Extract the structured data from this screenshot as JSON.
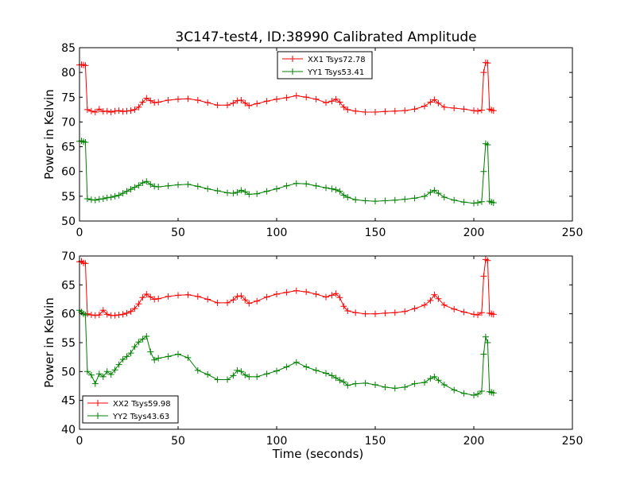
{
  "title": "3C147-test4, ID:38990 Calibrated Amplitude",
  "colors": {
    "red": "#ff0000",
    "green": "#008000"
  },
  "chart_data": [
    {
      "type": "line",
      "xlabel": "",
      "ylabel": "Power in Kelvin",
      "xlim": [
        0,
        250
      ],
      "ylim": [
        50,
        85
      ],
      "xticks": [
        "0",
        "50",
        "100",
        "150",
        "200",
        "250"
      ],
      "yticks": [
        "50",
        "55",
        "60",
        "65",
        "70",
        "75",
        "80",
        "85"
      ],
      "legend_position": "top-center",
      "grid": false,
      "series": [
        {
          "name": "XX1 Tsys72.78",
          "color": "#ff0000",
          "marker": "plus",
          "x": [
            0,
            1,
            2,
            3,
            4,
            6,
            8,
            10,
            12,
            14,
            16,
            18,
            20,
            22,
            24,
            26,
            28,
            30,
            32,
            34,
            36,
            38,
            40,
            45,
            50,
            55,
            60,
            65,
            70,
            75,
            78,
            80,
            82,
            84,
            86,
            90,
            95,
            100,
            105,
            110,
            115,
            120,
            125,
            128,
            130,
            132,
            134,
            136,
            140,
            145,
            150,
            155,
            160,
            165,
            170,
            175,
            178,
            180,
            182,
            185,
            190,
            195,
            200,
            202,
            204,
            205,
            206,
            207,
            208,
            209,
            210
          ],
          "y": [
            81.5,
            81.6,
            81.5,
            81.4,
            72.5,
            72.2,
            72.0,
            72.6,
            72.1,
            72.2,
            72.0,
            72.2,
            72.3,
            72.1,
            72.2,
            72.3,
            72.5,
            73.0,
            74.0,
            74.8,
            74.3,
            73.9,
            74.0,
            74.4,
            74.6,
            74.7,
            74.4,
            73.9,
            73.4,
            73.4,
            73.8,
            74.3,
            74.4,
            73.8,
            73.3,
            73.7,
            74.2,
            74.6,
            74.9,
            75.3,
            75.0,
            74.6,
            73.9,
            74.2,
            74.6,
            74.0,
            73.0,
            72.5,
            72.2,
            72.0,
            72.0,
            72.1,
            72.2,
            72.3,
            72.6,
            73.2,
            74.0,
            74.5,
            73.8,
            73.0,
            72.8,
            72.6,
            72.3,
            72.2,
            72.4,
            80.0,
            82.0,
            81.9,
            72.6,
            72.4,
            72.3
          ]
        },
        {
          "name": "YY1 Tsys53.41",
          "color": "#008000",
          "marker": "plus",
          "x": [
            0,
            1,
            2,
            3,
            4,
            6,
            8,
            10,
            12,
            14,
            16,
            18,
            20,
            22,
            24,
            26,
            28,
            30,
            32,
            34,
            36,
            38,
            40,
            45,
            50,
            55,
            60,
            65,
            70,
            75,
            78,
            80,
            82,
            84,
            86,
            90,
            95,
            100,
            105,
            110,
            115,
            120,
            125,
            128,
            130,
            132,
            134,
            136,
            140,
            145,
            150,
            155,
            160,
            165,
            170,
            175,
            178,
            180,
            182,
            185,
            190,
            195,
            200,
            202,
            204,
            205,
            206,
            207,
            208,
            209,
            210
          ],
          "y": [
            66.1,
            66.2,
            66.0,
            65.9,
            54.5,
            54.3,
            54.2,
            54.4,
            54.5,
            54.7,
            54.8,
            55.0,
            55.2,
            55.6,
            56.0,
            56.4,
            56.8,
            57.2,
            57.7,
            58.0,
            57.4,
            57.0,
            56.9,
            57.1,
            57.3,
            57.4,
            57.0,
            56.5,
            56.1,
            55.7,
            55.6,
            55.8,
            56.2,
            55.9,
            55.4,
            55.5,
            56.0,
            56.5,
            57.1,
            57.6,
            57.5,
            57.1,
            56.7,
            56.5,
            56.3,
            56.0,
            55.2,
            54.8,
            54.3,
            54.1,
            54.0,
            54.1,
            54.2,
            54.4,
            54.6,
            55.0,
            55.8,
            56.2,
            55.6,
            54.8,
            54.2,
            53.8,
            53.6,
            53.7,
            53.9,
            60.0,
            65.6,
            65.4,
            54.0,
            53.8,
            53.7
          ]
        }
      ]
    },
    {
      "type": "line",
      "xlabel": "Time (seconds)",
      "ylabel": "Power in Kelvin",
      "xlim": [
        0,
        250
      ],
      "ylim": [
        40,
        70
      ],
      "xticks": [
        "0",
        "50",
        "100",
        "150",
        "200",
        "250"
      ],
      "yticks": [
        "40",
        "45",
        "50",
        "55",
        "60",
        "65",
        "70"
      ],
      "legend_position": "lower-left",
      "grid": false,
      "series": [
        {
          "name": "XX2 Tsys59.98",
          "color": "#ff0000",
          "marker": "plus",
          "x": [
            0,
            1,
            2,
            3,
            4,
            6,
            8,
            10,
            12,
            14,
            16,
            18,
            20,
            22,
            24,
            26,
            28,
            30,
            32,
            34,
            36,
            38,
            40,
            45,
            50,
            55,
            60,
            65,
            70,
            75,
            78,
            80,
            82,
            84,
            86,
            90,
            95,
            100,
            105,
            110,
            115,
            120,
            125,
            128,
            130,
            132,
            134,
            136,
            140,
            145,
            150,
            155,
            160,
            165,
            170,
            175,
            178,
            180,
            182,
            185,
            190,
            195,
            200,
            202,
            204,
            205,
            206,
            207,
            208,
            209,
            210
          ],
          "y": [
            69.0,
            69.1,
            68.8,
            68.7,
            60.0,
            59.8,
            59.7,
            59.8,
            60.6,
            59.9,
            59.7,
            59.7,
            59.8,
            59.9,
            60.1,
            60.4,
            60.9,
            61.7,
            62.8,
            63.4,
            62.9,
            62.5,
            62.6,
            63.0,
            63.2,
            63.3,
            63.0,
            62.5,
            61.9,
            61.9,
            62.4,
            63.0,
            63.1,
            62.4,
            61.8,
            62.2,
            62.9,
            63.4,
            63.7,
            64.0,
            63.8,
            63.4,
            62.9,
            63.2,
            63.5,
            62.8,
            61.3,
            60.5,
            60.2,
            60.0,
            60.0,
            60.1,
            60.2,
            60.4,
            60.9,
            61.5,
            62.3,
            63.3,
            62.6,
            61.5,
            60.8,
            60.3,
            59.9,
            59.8,
            60.2,
            66.5,
            69.4,
            69.2,
            60.1,
            60.0,
            59.9
          ]
        },
        {
          "name": "YY2 Tsys43.63",
          "color": "#008000",
          "marker": "plus",
          "x": [
            0,
            1,
            2,
            3,
            4,
            6,
            8,
            10,
            12,
            14,
            16,
            18,
            20,
            22,
            24,
            26,
            28,
            30,
            32,
            34,
            36,
            38,
            40,
            45,
            50,
            55,
            60,
            65,
            70,
            75,
            78,
            80,
            82,
            84,
            86,
            90,
            95,
            100,
            105,
            110,
            115,
            120,
            125,
            128,
            130,
            132,
            134,
            136,
            140,
            145,
            150,
            155,
            160,
            165,
            170,
            175,
            178,
            180,
            182,
            185,
            190,
            195,
            200,
            202,
            204,
            205,
            206,
            207,
            208,
            209,
            210
          ],
          "y": [
            60.6,
            60.3,
            60.0,
            59.8,
            50.0,
            49.4,
            47.9,
            49.6,
            49.1,
            50.0,
            49.5,
            50.3,
            51.2,
            52.1,
            52.6,
            53.2,
            54.3,
            55.1,
            55.6,
            56.1,
            53.4,
            52.0,
            52.3,
            52.6,
            53.0,
            52.4,
            50.2,
            49.5,
            48.6,
            48.6,
            49.3,
            50.2,
            50.0,
            49.4,
            49.1,
            49.1,
            49.6,
            50.1,
            50.8,
            51.6,
            50.8,
            50.2,
            49.7,
            49.3,
            48.9,
            48.5,
            48.2,
            47.6,
            47.9,
            48.0,
            47.7,
            47.3,
            47.1,
            47.3,
            47.9,
            48.1,
            48.8,
            49.1,
            48.5,
            47.7,
            46.8,
            46.2,
            45.9,
            46.1,
            46.6,
            53.0,
            56.0,
            55.0,
            46.5,
            46.4,
            46.3
          ]
        }
      ]
    }
  ]
}
